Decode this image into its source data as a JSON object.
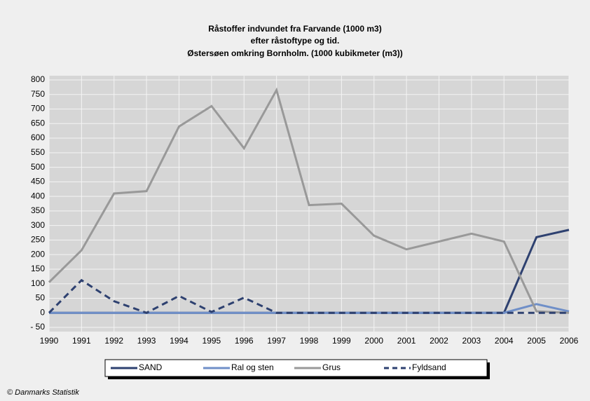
{
  "chart_data": {
    "type": "line",
    "title": [
      "Råstoffer indvundet fra Farvande (1000 m3)",
      "efter råstoftype og tid.",
      "Østersøen omkring Bornholm. (1000 kubikmeter (m3))"
    ],
    "categories": [
      "1990",
      "1991",
      "1992",
      "1993",
      "1994",
      "1995",
      "1996",
      "1997",
      "1998",
      "1999",
      "2000",
      "2001",
      "2002",
      "2003",
      "2004",
      "2005",
      "2006"
    ],
    "series": [
      {
        "name": "SAND",
        "color": "#2e4170",
        "dash": false,
        "values": [
          0,
          0,
          0,
          0,
          0,
          0,
          0,
          0,
          0,
          0,
          0,
          0,
          0,
          0,
          0,
          260,
          285
        ]
      },
      {
        "name": "Ral og sten",
        "color": "#6f8fc8",
        "dash": false,
        "values": [
          0,
          0,
          0,
          0,
          0,
          0,
          0,
          0,
          0,
          0,
          0,
          0,
          0,
          0,
          0,
          30,
          5
        ]
      },
      {
        "name": "Grus",
        "color": "#999999",
        "dash": false,
        "values": [
          105,
          215,
          410,
          418,
          640,
          710,
          565,
          765,
          370,
          375,
          265,
          218,
          245,
          272,
          245,
          5,
          0
        ]
      },
      {
        "name": "Fyldsand",
        "color": "#2e4170",
        "dash": true,
        "values": [
          0,
          112,
          40,
          0,
          58,
          3,
          52,
          0,
          0,
          0,
          0,
          0,
          0,
          0,
          0,
          0,
          0
        ]
      }
    ],
    "ylim": [
      -50,
      800
    ],
    "yticks": [
      {
        "value": -50,
        "label": "- 50"
      },
      0,
      50,
      100,
      150,
      200,
      250,
      300,
      350,
      400,
      450,
      500,
      550,
      600,
      650,
      700,
      750,
      800
    ],
    "grid": true,
    "footer": "© Danmarks Statistik"
  }
}
